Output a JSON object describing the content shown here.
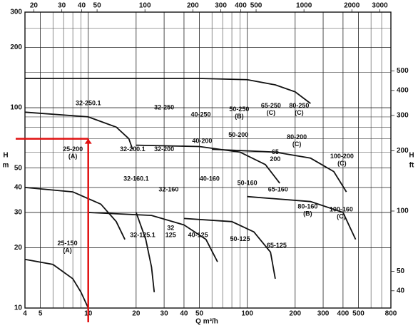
{
  "chart_data": {
    "type": "pump-coverage",
    "xlabel": "Q m³/h",
    "ylabel": [
      "H",
      "m"
    ],
    "y2label": [
      "H",
      "ft"
    ],
    "xlim": [
      4,
      800
    ],
    "xticks": [
      4,
      5,
      10,
      20,
      30,
      40,
      50,
      100,
      200,
      300,
      400,
      500,
      800
    ],
    "x_minor_grid": [
      6,
      7,
      8,
      9,
      60,
      70,
      80,
      90,
      600,
      700
    ],
    "x2lim": [
      17.6,
      3520
    ],
    "x2ticks": [
      20,
      30,
      40,
      50,
      100,
      200,
      300,
      400,
      500,
      1000,
      2000,
      3000
    ],
    "ylim": [
      10,
      300
    ],
    "yticks": [
      10,
      20,
      30,
      40,
      50,
      100,
      200,
      300
    ],
    "y_minor_grid": [
      60,
      70,
      80,
      90,
      150,
      250
    ],
    "y2lim": [
      32.8,
      984
    ],
    "y2ticks": [
      40,
      50,
      100,
      200,
      300,
      400,
      500
    ],
    "log_x": true,
    "log_y": true,
    "grid": true,
    "guide": {
      "x": 10,
      "y": 70,
      "color": "#e01010"
    },
    "curves": [
      {
        "x": [
          4,
          6,
          8,
          9,
          10
        ],
        "y": [
          17.5,
          16.5,
          14,
          12,
          10
        ]
      },
      {
        "x": [
          4,
          8,
          12,
          15,
          17
        ],
        "y": [
          40,
          38,
          33,
          27,
          22
        ]
      },
      {
        "x": [
          4,
          10,
          15,
          18,
          19
        ],
        "y": [
          95,
          90,
          80,
          70,
          62
        ]
      },
      {
        "x": [
          4,
          50,
          100,
          150,
          200,
          250
        ],
        "y": [
          140,
          140,
          138,
          130,
          120,
          105
        ]
      },
      {
        "x": [
          10,
          25,
          40,
          55,
          65
        ],
        "y": [
          30,
          29,
          26,
          22,
          17
        ]
      },
      {
        "x": [
          20,
          50,
          90,
          130,
          160
        ],
        "y": [
          65,
          64,
          60,
          52,
          42
        ]
      },
      {
        "x": [
          60,
          150,
          250,
          350,
          420
        ],
        "y": [
          62,
          60,
          56,
          48,
          38
        ]
      },
      {
        "x": [
          100,
          250,
          400,
          480
        ],
        "y": [
          36,
          34,
          30,
          22
        ]
      },
      {
        "x": [
          40,
          80,
          110,
          140,
          150
        ],
        "y": [
          28,
          27,
          24,
          19,
          14
        ]
      },
      {
        "x": [
          20,
          23,
          25,
          26
        ],
        "y": [
          30,
          22,
          16,
          12
        ]
      }
    ],
    "labels": [
      {
        "text": "32-250.1",
        "x": 10,
        "y": 105
      },
      {
        "text": "32-250",
        "x": 30,
        "y": 100
      },
      {
        "text": "40-250",
        "x": 51,
        "y": 92
      },
      {
        "text": "50-250",
        "sub": "(B)",
        "x": 89,
        "y": 98
      },
      {
        "text": "65-250",
        "sub": "(C)",
        "x": 141,
        "y": 102
      },
      {
        "text": "80-250",
        "sub": "(C)",
        "x": 212,
        "y": 102
      },
      {
        "text": "25-200",
        "sub": "(A)",
        "x": 8,
        "y": 62
      },
      {
        "text": "32-200.1",
        "x": 19,
        "y": 62
      },
      {
        "text": "32-200",
        "x": 30,
        "y": 62
      },
      {
        "text": "40-200",
        "x": 52,
        "y": 68
      },
      {
        "text": "50-200",
        "x": 88,
        "y": 73
      },
      {
        "text": "65",
        "sub": "200",
        "x": 150,
        "y": 60
      },
      {
        "text": "80-200",
        "sub": "(C)",
        "x": 205,
        "y": 71
      },
      {
        "text": "100-200",
        "sub": "(C)",
        "x": 394,
        "y": 57
      },
      {
        "text": "32-160.1",
        "x": 20,
        "y": 44
      },
      {
        "text": "32-160",
        "x": 32,
        "y": 39
      },
      {
        "text": "40-160",
        "x": 58,
        "y": 44
      },
      {
        "text": "50-160",
        "x": 100,
        "y": 42
      },
      {
        "text": "65-160",
        "x": 156,
        "y": 39
      },
      {
        "text": "80-160",
        "sub": "(B)",
        "x": 240,
        "y": 32
      },
      {
        "text": "100-160",
        "sub": "(C)",
        "x": 390,
        "y": 31
      },
      {
        "text": "25-150",
        "sub": "(A)",
        "x": 7.4,
        "y": 21
      },
      {
        "text": "32-125.1",
        "x": 22,
        "y": 23
      },
      {
        "text": "32",
        "sub": "125",
        "x": 33,
        "y": 25
      },
      {
        "text": "40-125",
        "x": 49,
        "y": 23
      },
      {
        "text": "50-125",
        "x": 90,
        "y": 22
      },
      {
        "text": "65-125",
        "x": 153,
        "y": 20.5
      }
    ]
  }
}
